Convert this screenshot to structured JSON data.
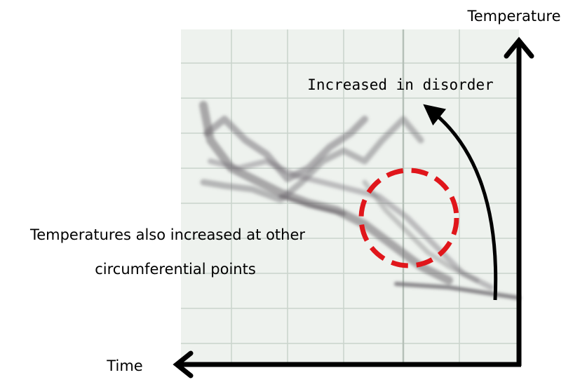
{
  "labels": {
    "y_axis": "Temperature",
    "x_axis": "Time",
    "arrow_note": "Increased in disorder",
    "circle_note": [
      "Temperatures also increased at other",
      "circumferential points"
    ]
  }
}
